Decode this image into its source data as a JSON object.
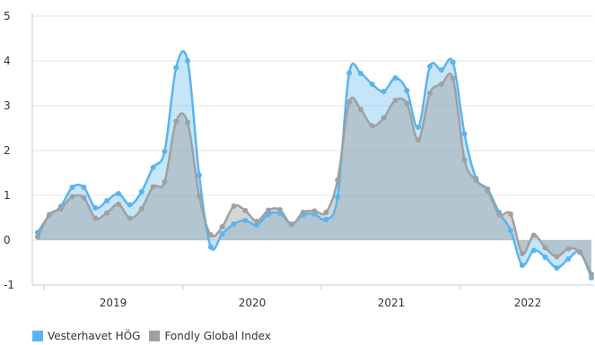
{
  "chart_data": {
    "type": "area",
    "xlabel": "",
    "ylabel": "",
    "ylim": [
      -1,
      5
    ],
    "yticks": [
      "-1",
      "0",
      "1",
      "2",
      "3",
      "4",
      "5"
    ],
    "x_axis_labels": [
      "2019",
      "2020",
      "2021",
      "2022"
    ],
    "grid": "horizontal",
    "legend_position": "bottom-left",
    "series": [
      {
        "name": "Vesterhavet HÖG",
        "color": "#5ab4ee",
        "values": [
          0.17,
          0.55,
          0.75,
          1.18,
          1.18,
          0.72,
          0.88,
          1.04,
          0.79,
          1.08,
          1.62,
          1.98,
          3.85,
          4.0,
          1.45,
          -0.15,
          0.14,
          0.36,
          0.44,
          0.34,
          0.58,
          0.6,
          0.36,
          0.56,
          0.58,
          0.46,
          0.96,
          3.73,
          3.72,
          3.48,
          3.32,
          3.62,
          3.34,
          2.52,
          3.88,
          3.8,
          3.97,
          2.37,
          1.38,
          1.14,
          0.62,
          0.22,
          -0.56,
          -0.23,
          -0.38,
          -0.62,
          -0.42,
          -0.27,
          -0.84
        ]
      },
      {
        "name": "Fondly Global Index",
        "color": "#a0a0a0",
        "values": [
          0.07,
          0.57,
          0.7,
          0.97,
          0.95,
          0.49,
          0.61,
          0.8,
          0.49,
          0.7,
          1.19,
          1.3,
          2.65,
          2.63,
          0.98,
          0.12,
          0.3,
          0.76,
          0.66,
          0.42,
          0.67,
          0.68,
          0.35,
          0.62,
          0.65,
          0.62,
          1.34,
          3.08,
          2.92,
          2.55,
          2.73,
          3.12,
          3.05,
          2.24,
          3.28,
          3.48,
          3.61,
          1.79,
          1.34,
          1.1,
          0.57,
          0.58,
          -0.3,
          0.11,
          -0.17,
          -0.37,
          -0.19,
          -0.27,
          -0.76
        ]
      }
    ]
  }
}
